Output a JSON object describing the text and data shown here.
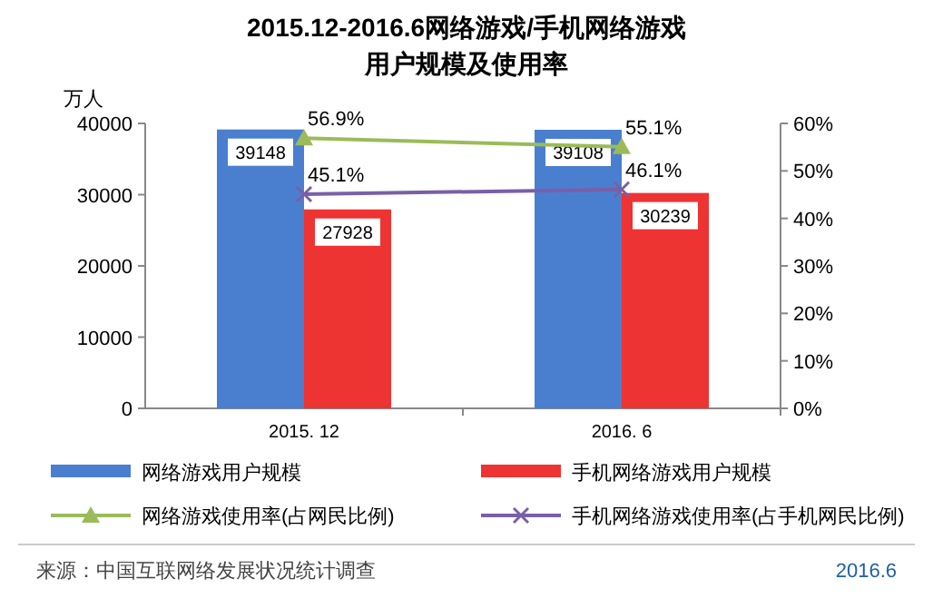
{
  "chart_data": {
    "type": "bar",
    "title": "2015.12-2016.6网络游戏/手机网络游戏",
    "subtitle": "用户规模及使用率",
    "ylabel": "万人",
    "categories": [
      "2015. 12",
      "2016. 6"
    ],
    "series": [
      {
        "name": "网络游戏用户规模",
        "color": "#4a7fd0",
        "values": [
          39148,
          39108
        ]
      },
      {
        "name": "手机网络游戏用户规模",
        "color": "#ee3333",
        "values": [
          27928,
          30239
        ]
      },
      {
        "name": "网络游戏使用率(占网民比例)",
        "type": "line",
        "axis": "y2",
        "marker": "triangle",
        "color": "#9bbb59",
        "values": [
          56.9,
          55.1
        ],
        "value_labels": [
          "56.9%",
          "55.1%"
        ]
      },
      {
        "name": "手机网络游戏使用率(占手机网民比例)",
        "type": "line",
        "axis": "y2",
        "marker": "cross",
        "color": "#7a5fa8",
        "values": [
          45.1,
          46.1
        ],
        "value_labels": [
          "45.1%",
          "46.1%"
        ]
      }
    ],
    "ylim": [
      0,
      40000
    ],
    "yticks": [
      0,
      10000,
      20000,
      30000,
      40000
    ],
    "y2lim": [
      0,
      60
    ],
    "y2ticks": [
      {
        "value": 0,
        "label": "0%"
      },
      {
        "value": 10,
        "label": "10%"
      },
      {
        "value": 20,
        "label": "20%"
      },
      {
        "value": 30,
        "label": "30%"
      },
      {
        "value": 40,
        "label": "40%"
      },
      {
        "value": 50,
        "label": "50%"
      },
      {
        "value": 60,
        "label": "60%"
      }
    ],
    "data_labels": true,
    "legend": "bottom",
    "grid": false,
    "annotations": [
      "来源：中国互联网络发展状况统计调查",
      "2016.6"
    ]
  }
}
